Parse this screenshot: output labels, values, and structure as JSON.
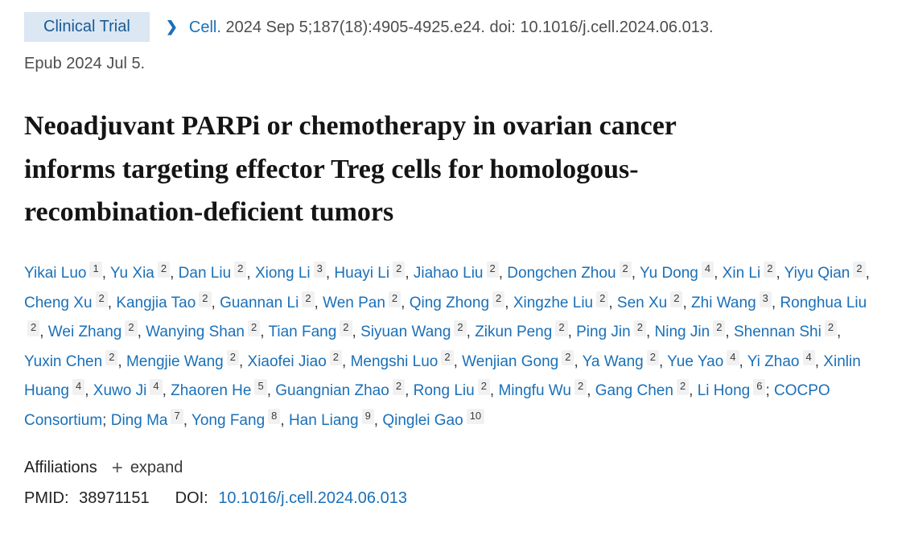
{
  "badge": {
    "label": "Clinical Trial"
  },
  "citation": {
    "journal": "Cell.",
    "details": " 2024 Sep 5;187(18):4905-4925.e24. doi: 10.1016/j.cell.2024.06.013.",
    "epub": "Epub 2024 Jul 5."
  },
  "title": "Neoadjuvant PARPi or chemotherapy in ovarian cancer informs targeting effector Treg cells for homologous-recombination-deficient tumors",
  "authors": [
    {
      "name": "Yikai Luo",
      "sup": "1",
      "sep": ", "
    },
    {
      "name": "Yu Xia",
      "sup": "2",
      "sep": ", "
    },
    {
      "name": "Dan Liu",
      "sup": "2",
      "sep": ", "
    },
    {
      "name": "Xiong Li",
      "sup": "3",
      "sep": ", "
    },
    {
      "name": "Huayi Li",
      "sup": "2",
      "sep": ", "
    },
    {
      "name": "Jiahao Liu",
      "sup": "2",
      "sep": ", "
    },
    {
      "name": "Dongchen Zhou",
      "sup": "2",
      "sep": ", "
    },
    {
      "name": "Yu Dong",
      "sup": "4",
      "sep": ", "
    },
    {
      "name": "Xin Li",
      "sup": "2",
      "sep": ", "
    },
    {
      "name": "Yiyu Qian",
      "sup": "2",
      "sep": ", "
    },
    {
      "name": "Cheng Xu",
      "sup": "2",
      "sep": ", "
    },
    {
      "name": "Kangjia Tao",
      "sup": "2",
      "sep": ", "
    },
    {
      "name": "Guannan Li",
      "sup": "2",
      "sep": ", "
    },
    {
      "name": "Wen Pan",
      "sup": "2",
      "sep": ", "
    },
    {
      "name": "Qing Zhong",
      "sup": "2",
      "sep": ", "
    },
    {
      "name": "Xingzhe Liu",
      "sup": "2",
      "sep": ", "
    },
    {
      "name": "Sen Xu",
      "sup": "2",
      "sep": ", "
    },
    {
      "name": "Zhi Wang",
      "sup": "3",
      "sep": ", "
    },
    {
      "name": "Ronghua Liu",
      "sup": "2",
      "sep": ", "
    },
    {
      "name": "Wei Zhang",
      "sup": "2",
      "sep": ", "
    },
    {
      "name": "Wanying Shan",
      "sup": "2",
      "sep": ", "
    },
    {
      "name": "Tian Fang",
      "sup": "2",
      "sep": ", "
    },
    {
      "name": "Siyuan Wang",
      "sup": "2",
      "sep": ", "
    },
    {
      "name": "Zikun Peng",
      "sup": "2",
      "sep": ", "
    },
    {
      "name": "Ping Jin",
      "sup": "2",
      "sep": ", "
    },
    {
      "name": "Ning Jin",
      "sup": "2",
      "sep": ", "
    },
    {
      "name": "Shennan Shi",
      "sup": "2",
      "sep": ", "
    },
    {
      "name": "Yuxin Chen",
      "sup": "2",
      "sep": ", "
    },
    {
      "name": "Mengjie Wang",
      "sup": "2",
      "sep": ", "
    },
    {
      "name": "Xiaofei Jiao",
      "sup": "2",
      "sep": ", "
    },
    {
      "name": "Mengshi Luo",
      "sup": "2",
      "sep": ", "
    },
    {
      "name": "Wenjian Gong",
      "sup": "2",
      "sep": ", "
    },
    {
      "name": "Ya Wang",
      "sup": "2",
      "sep": ", "
    },
    {
      "name": "Yue Yao",
      "sup": "4",
      "sep": ", "
    },
    {
      "name": "Yi Zhao",
      "sup": "4",
      "sep": ", "
    },
    {
      "name": "Xinlin Huang",
      "sup": "4",
      "sep": ", "
    },
    {
      "name": "Xuwo Ji",
      "sup": "4",
      "sep": ", "
    },
    {
      "name": "Zhaoren He",
      "sup": "5",
      "sep": ", "
    },
    {
      "name": "Guangnian Zhao",
      "sup": "2",
      "sep": ", "
    },
    {
      "name": "Rong Liu",
      "sup": "2",
      "sep": ", "
    },
    {
      "name": "Mingfu Wu",
      "sup": "2",
      "sep": ", "
    },
    {
      "name": "Gang Chen",
      "sup": "2",
      "sep": ", "
    },
    {
      "name": "Li Hong",
      "sup": "6",
      "sep": "; "
    },
    {
      "name": "COCPO Consortium",
      "sup": "",
      "sep": "; "
    },
    {
      "name": "Ding Ma",
      "sup": "7",
      "sep": ", "
    },
    {
      "name": "Yong Fang",
      "sup": "8",
      "sep": ", "
    },
    {
      "name": "Han Liang",
      "sup": "9",
      "sep": ", "
    },
    {
      "name": "Qinglei Gao",
      "sup": "10",
      "sep": ""
    }
  ],
  "affiliations": {
    "label": "Affiliations",
    "plus_icon": "+",
    "expand_label": "expand"
  },
  "identifiers": {
    "pmid_label": "PMID:",
    "pmid": "38971151",
    "doi_label": "DOI:",
    "doi": "10.1016/j.cell.2024.06.013"
  },
  "colors": {
    "link_blue": "#1a70b8",
    "badge_background": "#dbe7f2",
    "badge_text": "#1a5a96",
    "body_gray": "#4d4d4d",
    "title_black": "#141414",
    "superscript_background": "#f1f1f1"
  },
  "icons": {
    "chevron_right": "❯"
  }
}
